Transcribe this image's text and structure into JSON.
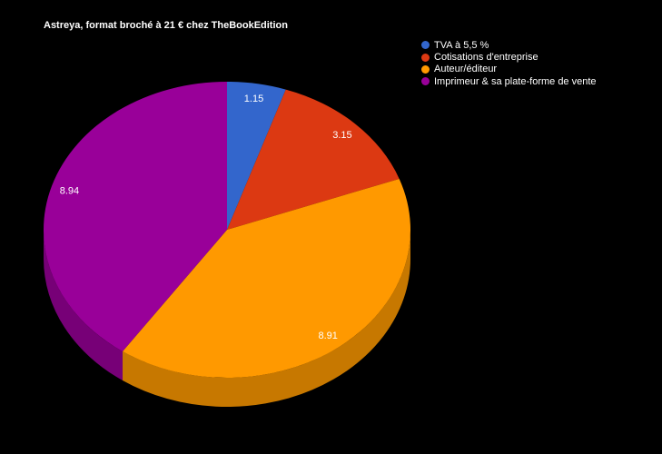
{
  "title": "Astreya, format broché à 21 € chez TheBookEdition",
  "background": "#000000",
  "legend": {
    "position": "top-right",
    "items": [
      {
        "label": "TVA à 5,5 %",
        "color": "#3366cc"
      },
      {
        "label": "Cotisations d'entreprise",
        "color": "#dc3912"
      },
      {
        "label": "Auteur/éditeur",
        "color": "#ff9900"
      },
      {
        "label": "Imprimeur & sa plate-forme de vente",
        "color": "#990099"
      }
    ]
  },
  "chart_data": {
    "type": "pie",
    "is3d": true,
    "title": "Astreya, format broché à 21 € chez TheBookEdition",
    "categories": [
      "TVA à 5,5 %",
      "Cotisations d'entreprise",
      "Auteur/éditeur",
      "Imprimeur & sa plate-forme de vente"
    ],
    "values": [
      1.15,
      3.15,
      8.91,
      8.94
    ],
    "labels": [
      "1.15",
      "3.15",
      "8.91",
      "8.94"
    ],
    "colors": [
      "#3366cc",
      "#dc3912",
      "#ff9900",
      "#990099"
    ],
    "side_colors": [
      "#254c99",
      "#a52b0e",
      "#c77800",
      "#770077"
    ],
    "label_color": "#ffffff",
    "background": "#000000",
    "legend_position": "top-right",
    "start_angle": "12-oclock-clockwise"
  }
}
